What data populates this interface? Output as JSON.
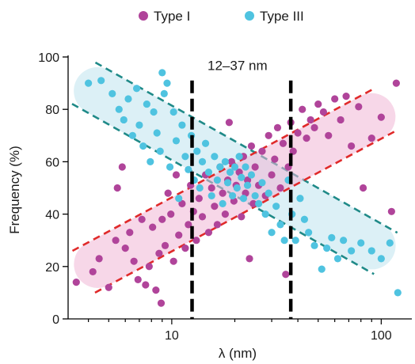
{
  "chart_data": {
    "type": "scatter",
    "title": "",
    "xlabel": "λ (nm)",
    "ylabel": "Frequency (%)",
    "x_scale": "log",
    "xlim": [
      3.2,
      140
    ],
    "ylim": [
      0,
      100
    ],
    "x_ticks": [
      10,
      100
    ],
    "y_ticks": [
      0,
      20,
      40,
      60,
      80,
      100
    ],
    "grid": false,
    "legend_position": "top",
    "annotation": {
      "text": "12–37 nm",
      "x_from": 12.5,
      "x_to": 37
    },
    "series": [
      {
        "name": "Type I",
        "color": "#b0449a",
        "points": [
          [
            3.5,
            14
          ],
          [
            4.2,
            18
          ],
          [
            4.5,
            23
          ],
          [
            5.0,
            12
          ],
          [
            5.4,
            30
          ],
          [
            5.5,
            50
          ],
          [
            5.8,
            58
          ],
          [
            6.0,
            27
          ],
          [
            6.3,
            33
          ],
          [
            6.6,
            22
          ],
          [
            6.9,
            15
          ],
          [
            7.2,
            38
          ],
          [
            7.5,
            13
          ],
          [
            7.8,
            20
          ],
          [
            8.1,
            35
          ],
          [
            8.4,
            11
          ],
          [
            8.7,
            25
          ],
          [
            8.9,
            6
          ],
          [
            9.0,
            38
          ],
          [
            9.3,
            28
          ],
          [
            9.6,
            48
          ],
          [
            9.9,
            40
          ],
          [
            10.2,
            22
          ],
          [
            10.5,
            55
          ],
          [
            10.8,
            32
          ],
          [
            11.2,
            44
          ],
          [
            11.6,
            27
          ],
          [
            12.0,
            36
          ],
          [
            12.3,
            51
          ],
          [
            12.7,
            41
          ],
          [
            13.1,
            30
          ],
          [
            13.5,
            46
          ],
          [
            14.0,
            39
          ],
          [
            14.5,
            55
          ],
          [
            15.0,
            33
          ],
          [
            15.5,
            50
          ],
          [
            16.0,
            43
          ],
          [
            16.5,
            36
          ],
          [
            17.0,
            58
          ],
          [
            17.5,
            48
          ],
          [
            18.0,
            40
          ],
          [
            18.5,
            53
          ],
          [
            18.8,
            75
          ],
          [
            19.3,
            60
          ],
          [
            19.8,
            45
          ],
          [
            20.3,
            51
          ],
          [
            21.0,
            56
          ],
          [
            21.5,
            39
          ],
          [
            22.0,
            62
          ],
          [
            22.5,
            48
          ],
          [
            23.0,
            53
          ],
          [
            23.5,
            23
          ],
          [
            24.0,
            66
          ],
          [
            24.5,
            44
          ],
          [
            25.0,
            58
          ],
          [
            26.0,
            51
          ],
          [
            27.0,
            64
          ],
          [
            28.0,
            47
          ],
          [
            29.0,
            70
          ],
          [
            30.0,
            55
          ],
          [
            31.0,
            61
          ],
          [
            32.0,
            73
          ],
          [
            33.0,
            50
          ],
          [
            34.0,
            67
          ],
          [
            35.0,
            17
          ],
          [
            36.0,
            58
          ],
          [
            37.0,
            75
          ],
          [
            38.0,
            64
          ],
          [
            40.0,
            71
          ],
          [
            42.0,
            80
          ],
          [
            44.0,
            69
          ],
          [
            46.0,
            76
          ],
          [
            48.0,
            73
          ],
          [
            50.0,
            82
          ],
          [
            53.0,
            79
          ],
          [
            56.0,
            70
          ],
          [
            60.0,
            84
          ],
          [
            64.0,
            76
          ],
          [
            68.0,
            85
          ],
          [
            72.0,
            66
          ],
          [
            78.0,
            81
          ],
          [
            82.0,
            50
          ],
          [
            90.0,
            69
          ],
          [
            100.0,
            77
          ],
          [
            112.0,
            41
          ],
          [
            118.0,
            90
          ]
        ]
      },
      {
        "name": "Type III",
        "color": "#4fc3e0",
        "points": [
          [
            4.0,
            90
          ],
          [
            4.6,
            91
          ],
          [
            5.2,
            86
          ],
          [
            5.6,
            80
          ],
          [
            5.9,
            76
          ],
          [
            6.2,
            84
          ],
          [
            6.5,
            70
          ],
          [
            6.8,
            88
          ],
          [
            7.0,
            74
          ],
          [
            7.3,
            66
          ],
          [
            7.6,
            82
          ],
          [
            7.9,
            60
          ],
          [
            8.2,
            79
          ],
          [
            8.5,
            71
          ],
          [
            8.8,
            64
          ],
          [
            9.0,
            94
          ],
          [
            9.2,
            86
          ],
          [
            9.5,
            90
          ],
          [
            9.8,
            58
          ],
          [
            10.2,
            79
          ],
          [
            10.5,
            68
          ],
          [
            10.8,
            46
          ],
          [
            11.2,
            74
          ],
          [
            11.6,
            62
          ],
          [
            12.0,
            57
          ],
          [
            12.4,
            70
          ],
          [
            12.8,
            53
          ],
          [
            13.2,
            64
          ],
          [
            13.6,
            50
          ],
          [
            14.0,
            60
          ],
          [
            14.5,
            67
          ],
          [
            15.0,
            56
          ],
          [
            15.5,
            47
          ],
          [
            16.0,
            62
          ],
          [
            16.5,
            53
          ],
          [
            17.0,
            58
          ],
          [
            17.5,
            44
          ],
          [
            18.0,
            60
          ],
          [
            18.5,
            52
          ],
          [
            19.0,
            56
          ],
          [
            19.5,
            47
          ],
          [
            20.0,
            58
          ],
          [
            20.5,
            50
          ],
          [
            21.0,
            62
          ],
          [
            21.5,
            54
          ],
          [
            22.0,
            46
          ],
          [
            22.5,
            58
          ],
          [
            23.0,
            51
          ],
          [
            24.0,
            55
          ],
          [
            25.0,
            47
          ],
          [
            26.0,
            44
          ],
          [
            27.0,
            52
          ],
          [
            28.0,
            40
          ],
          [
            29.0,
            48
          ],
          [
            30.0,
            33
          ],
          [
            31.5,
            43
          ],
          [
            33.0,
            36
          ],
          [
            34.5,
            30
          ],
          [
            36.0,
            53
          ],
          [
            37.5,
            40
          ],
          [
            39.0,
            30
          ],
          [
            41.0,
            46
          ],
          [
            43.0,
            38
          ],
          [
            45.0,
            33
          ],
          [
            48.0,
            28
          ],
          [
            52.0,
            19
          ],
          [
            55.0,
            27
          ],
          [
            58.0,
            31
          ],
          [
            62.0,
            23
          ],
          [
            66.0,
            30
          ],
          [
            72.0,
            26
          ],
          [
            80.0,
            29
          ],
          [
            90.0,
            26
          ],
          [
            100.0,
            23
          ],
          [
            110.0,
            29
          ],
          [
            120.0,
            10
          ]
        ]
      }
    ]
  }
}
